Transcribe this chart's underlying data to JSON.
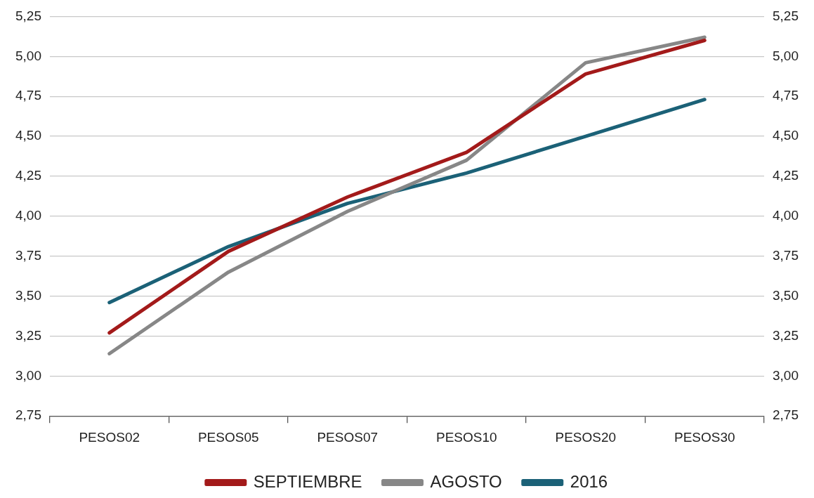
{
  "chart_data": {
    "type": "line",
    "categories": [
      "PESOS02",
      "PESOS05",
      "PESOS07",
      "PESOS10",
      "PESOS20",
      "PESOS30"
    ],
    "series": [
      {
        "name": "SEPTIEMBRE",
        "color": "#a31a1a",
        "values": [
          3.27,
          3.78,
          4.12,
          4.4,
          4.89,
          5.1
        ]
      },
      {
        "name": "AGOSTO",
        "color": "#878787",
        "values": [
          3.14,
          3.65,
          4.03,
          4.35,
          4.96,
          5.12
        ]
      },
      {
        "name": "2016",
        "color": "#1b6177",
        "values": [
          3.46,
          3.81,
          4.08,
          4.27,
          4.5,
          4.73
        ]
      }
    ],
    "ylim": [
      2.75,
      5.25
    ],
    "yticks": [
      {
        "value": 2.75,
        "label": "2,75"
      },
      {
        "value": 3.0,
        "label": "3,00"
      },
      {
        "value": 3.25,
        "label": "3,25"
      },
      {
        "value": 3.5,
        "label": "3,50"
      },
      {
        "value": 3.75,
        "label": "3,75"
      },
      {
        "value": 4.0,
        "label": "4,00"
      },
      {
        "value": 4.25,
        "label": "4,25"
      },
      {
        "value": 4.5,
        "label": "4,50"
      },
      {
        "value": 4.75,
        "label": "4,75"
      },
      {
        "value": 5.0,
        "label": "5,00"
      },
      {
        "value": 5.25,
        "label": "5,25"
      }
    ],
    "y2lim": [
      2.75,
      5.25
    ],
    "y2ticks": [
      {
        "value": 2.75,
        "label": "2,75"
      },
      {
        "value": 3.0,
        "label": "3,00"
      },
      {
        "value": 3.25,
        "label": "3,25"
      },
      {
        "value": 3.5,
        "label": "3,50"
      },
      {
        "value": 3.75,
        "label": "3,75"
      },
      {
        "value": 4.0,
        "label": "4,00"
      },
      {
        "value": 4.25,
        "label": "4,25"
      },
      {
        "value": 4.5,
        "label": "4,50"
      },
      {
        "value": 4.75,
        "label": "4,75"
      },
      {
        "value": 5.0,
        "label": "5,00"
      },
      {
        "value": 5.25,
        "label": "5,25"
      }
    ],
    "grid": "y",
    "legend": "bottom",
    "marker": "none",
    "line_style": "solid"
  }
}
